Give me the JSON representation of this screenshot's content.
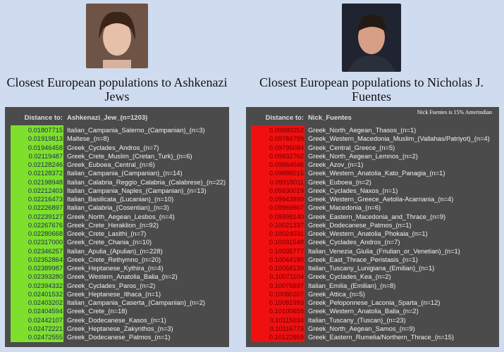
{
  "left": {
    "title": "Closest European populations to Ashkenazi Jews",
    "header": {
      "label": "Distance to:",
      "target": "Ashkenazi_Jew_(n=1203)"
    },
    "rows": [
      [
        "0.01807715",
        "Italian_Campania_Salerno_(Campanian)_(n=3)"
      ],
      [
        "0.01919813",
        "Maltese_(n=8)"
      ],
      [
        "0.01946458",
        "Greek_Cyclades_Andros_(n=7)"
      ],
      [
        "0.02119487",
        "Greek_Crete_Muslim_(Cretan_Turk)_(n=6)"
      ],
      [
        "0.02128246",
        "Greek_Euboea_Central_(n=6)"
      ],
      [
        "0.02128372",
        "Italian_Campania_(Campanian)_(n=14)"
      ],
      [
        "0.02198948",
        "Italian_Calabria_Reggio_Calabria_(Calabrese)_(n=22)"
      ],
      [
        "0.02212403",
        "Italian_Campania_Naples_(Campanian)_(n=13)"
      ],
      [
        "0.02216473",
        "Italian_Basilicata_(Lucanian)_(n=10)"
      ],
      [
        "0.02226897",
        "Italian_Calabria_(Cosentian)_(n=3)"
      ],
      [
        "0.02239127",
        "Greek_North_Aegean_Lesbos_(n=4)"
      ],
      [
        "0.02267676",
        "Greek_Crete_Heraklion_(n=92)"
      ],
      [
        "0.02280668",
        "Greek_Crete_Lasithi_(n=7)"
      ],
      [
        "0.02317000",
        "Greek_Crete_Chania_(n=10)"
      ],
      [
        "0.02346257",
        "Italian_Apulia_(Apulian)_(n=228)"
      ],
      [
        "0.02352864",
        "Greek_Crete_Rethymno_(n=20)"
      ],
      [
        "0.02389987",
        "Greek_Heptanese_Kythira_(n=4)"
      ],
      [
        "0.02393280",
        "Greek_Western_Anatolia_Balia_(n=2)"
      ],
      [
        "0.02394332",
        "Greek_Cyclades_Paros_(n=2)"
      ],
      [
        "0.02401532",
        "Greek_Heptanese_Ithaca_(n=1)"
      ],
      [
        "0.02403202",
        "Italian_Campania_Caserta_(Campanian)_(n=2)"
      ],
      [
        "0.02404594",
        "Greek_Crete_(n=18)"
      ],
      [
        "0.02442107",
        "Greek_Dodecanese_Kasos_(n=1)"
      ],
      [
        "0.02472221",
        "Greek_Heptanese_Zakynthos_(n=3)"
      ],
      [
        "0.02472555",
        "Greek_Dodecanese_Patmos_(n=1)"
      ]
    ]
  },
  "right": {
    "title": "Closest European populations to Nicholas J. Fuentes",
    "header": {
      "label": "Distance to:",
      "target": "Nick_Fuentes"
    },
    "note": "Nick Fuentes is 15% Amerindian",
    "rows": [
      [
        "0.09689252",
        "Greek_North_Aegean_Thasos_(n=1)"
      ],
      [
        "0.09784799",
        "Greek_Western_Macedonia_Muslim_(Vallahas/Patriyot)_(n=4)"
      ],
      [
        "0.09795084",
        "Greek_Central_Greece_(n=5)"
      ],
      [
        "0.09832762",
        "Greek_North_Aegean_Lemnos_(n=2)"
      ],
      [
        "0.09864046",
        "Greek_Azov_(n=1)"
      ],
      [
        "0.09888015",
        "Greek_Western_Anatolia_Kato_Panagia_(n=1)"
      ],
      [
        "0.09918011",
        "Greek_Euboea_(n=2)"
      ],
      [
        "0.09930019",
        "Greek_Cyclades_Naxos_(n=1)"
      ],
      [
        "0.09943899",
        "Greek_Western_Greece_Aetolia-Acarnania_(n=4)"
      ],
      [
        "0.09969667",
        "Greek_Macedonia_(n=6)"
      ],
      [
        "0.09998140",
        "Greek_Eastern_Macedonia_and_Thrace_(n=9)"
      ],
      [
        "0.10021337",
        "Greek_Dodecanese_Patmos_(n=1)"
      ],
      [
        "0.10024031",
        "Greek_Western_Anatolia_Phokaia_(n=1)"
      ],
      [
        "0.10031548",
        "Greek_Cyclades_Andros_(n=7)"
      ],
      [
        "0.10035777",
        "Italian_Venezia_Giulia_(Friulian_or_Venetian)_(n=1)"
      ],
      [
        "0.10044180",
        "Greek_East_Thrace_Peristasis_(n=1)"
      ],
      [
        "0.10058139",
        "Italian_Tuscany_Lunigiana_(Emilian)_(n=1)"
      ],
      [
        "0.10071104",
        "Greek_Cyclades_Kea_(n=2)"
      ],
      [
        "0.10076697",
        "Italian_Emilia_(Emilian)_(n=8)"
      ],
      [
        "0.10080207",
        "Greek_Attica_(n=5)"
      ],
      [
        "0.10081993",
        "Greek_Peloponnese_Laconia_Sparta_(n=12)"
      ],
      [
        "0.10100658",
        "Greek_Western_Anatolia_Balia_(n=2)"
      ],
      [
        "0.10115034",
        "Italian_Tuscany_(Tuscan)_(n=23)"
      ],
      [
        "0.10116773",
        "Greek_North_Aegean_Samos_(n=9)"
      ],
      [
        "0.10122859",
        "Greek_Eastern_Rumelia/Northern_Thrace_(n=15)"
      ]
    ]
  }
}
